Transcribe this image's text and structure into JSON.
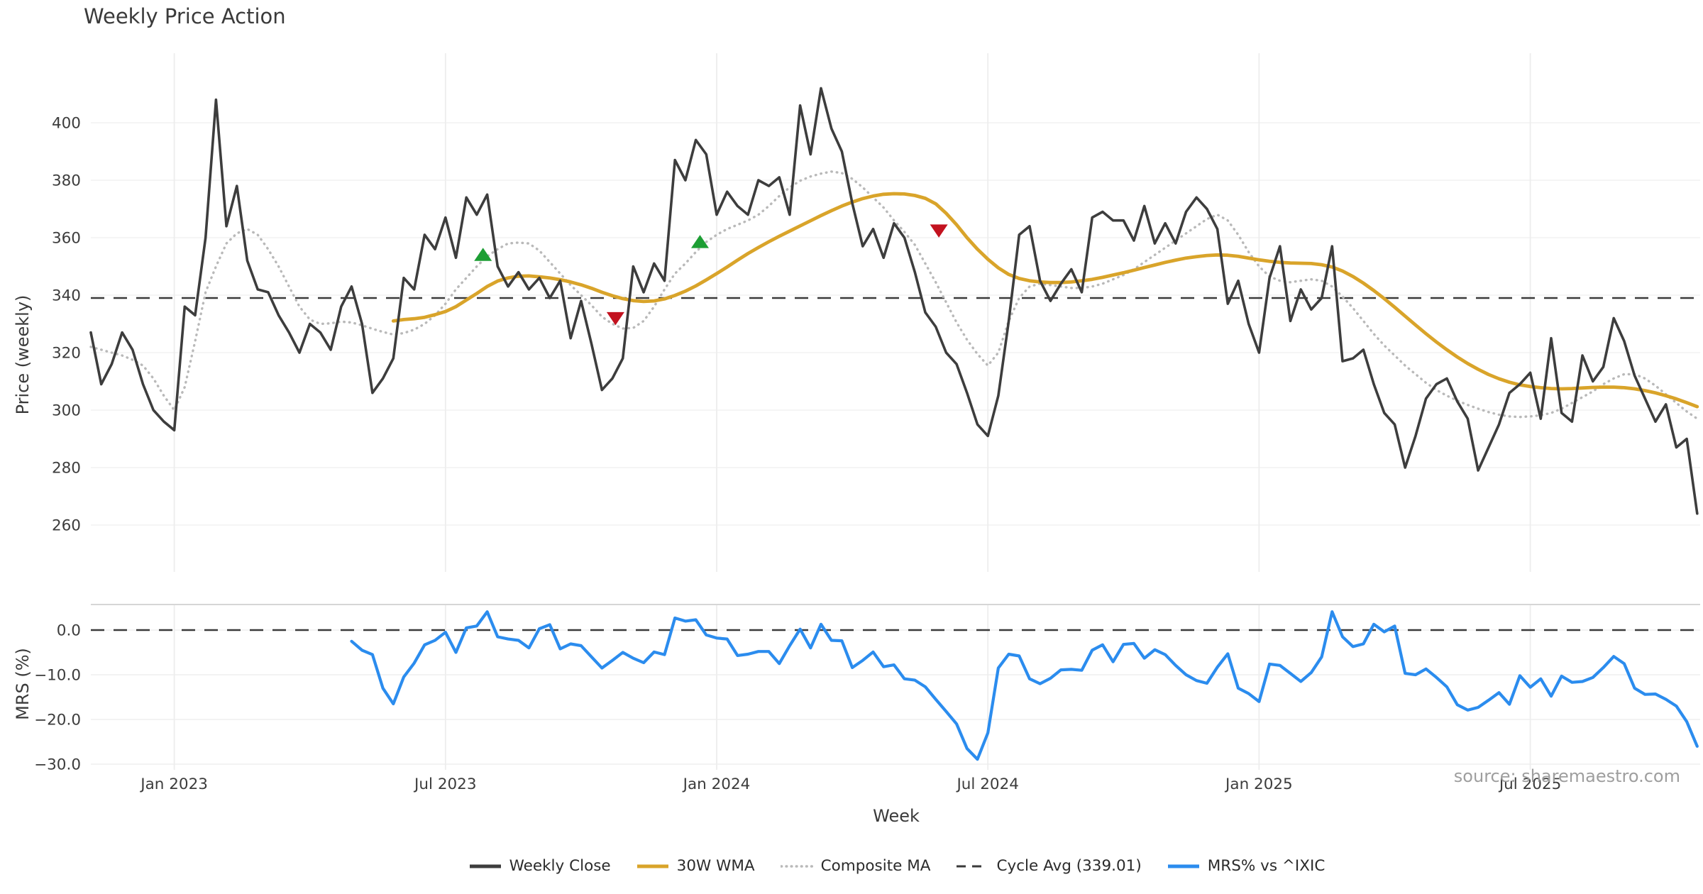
{
  "title": "Weekly Price Action",
  "labels": {
    "xlabel": "Week",
    "price_ylabel": "Price (weekly)",
    "mrs_ylabel": "MRS (%)",
    "source": "source: sharemaestro.com"
  },
  "legend": {
    "items": [
      {
        "label": "Weekly Close",
        "color": "#3d3d3d",
        "style": "solid"
      },
      {
        "label": "30W WMA",
        "color": "#d9a42a",
        "style": "solid"
      },
      {
        "label": "Composite MA",
        "color": "#b9b9b9",
        "style": "dotted"
      },
      {
        "label": "Cycle Avg (339.01)",
        "color": "#3a3a3a",
        "style": "dashed"
      },
      {
        "label": "MRS% vs ^IXIC",
        "color": "#2b8cee",
        "style": "solid"
      }
    ]
  },
  "chart_data": {
    "type": "line",
    "title": "Weekly Price Action",
    "x_axis": {
      "label": "Week",
      "unit": "week_index",
      "ticks": [
        {
          "week": 8,
          "label": "Jan 2023"
        },
        {
          "week": 34,
          "label": "Jul 2023"
        },
        {
          "week": 60,
          "label": "Jan 2024"
        },
        {
          "week": 86,
          "label": "Jul 2024"
        },
        {
          "week": 112,
          "label": "Jan 2025"
        },
        {
          "week": 138,
          "label": "Jul 2025"
        }
      ]
    },
    "price_panel": {
      "ylabel": "Price (weekly)",
      "ylim": [
        254,
        416
      ],
      "yticks": [
        400,
        380,
        360,
        340,
        320,
        300,
        280,
        260
      ],
      "grid": true,
      "cycle_avg": 339.01,
      "weekly_close": {
        "name": "Weekly Close",
        "color": "#3d3d3d",
        "style": "solid",
        "start_week": 0,
        "values": [
          327,
          309,
          316,
          327,
          321,
          309,
          300,
          296,
          293,
          336,
          333,
          360,
          408,
          364,
          378,
          352,
          342,
          341,
          333,
          327,
          320,
          330,
          327,
          321,
          336,
          343,
          330,
          306,
          311,
          318,
          346,
          342,
          361,
          356,
          367,
          353,
          374,
          368,
          375,
          350,
          343,
          348,
          342,
          346,
          339,
          345,
          325,
          338,
          323,
          307,
          311,
          318,
          350,
          341,
          351,
          345,
          387,
          380,
          394,
          389,
          368,
          376,
          371,
          368,
          380,
          378,
          381,
          368,
          406,
          389,
          412,
          398,
          390,
          372,
          357,
          363,
          353,
          365,
          360,
          348,
          334,
          329,
          320,
          316,
          306,
          295,
          291,
          305,
          331,
          361,
          364,
          345,
          338,
          344,
          349,
          341,
          367,
          369,
          366,
          366,
          359,
          371,
          358,
          365,
          358,
          369,
          374,
          370,
          363,
          337,
          345,
          330,
          320,
          346,
          357,
          331,
          342,
          335,
          339,
          357,
          317,
          318,
          321,
          309,
          299,
          295,
          280,
          291,
          304,
          309,
          311,
          303,
          297,
          279,
          287,
          295,
          306,
          309,
          313,
          297,
          325,
          299,
          296,
          319,
          310,
          315,
          332,
          324,
          312,
          304,
          296,
          302,
          287,
          290,
          264
        ]
      },
      "wma_30w": {
        "name": "30W WMA",
        "color": "#d9a42a",
        "style": "solid",
        "start_week": 29,
        "values": [
          331,
          331.5,
          331.8,
          332.3,
          333.2,
          334.3,
          336,
          338.3,
          340.6,
          343,
          344.9,
          346,
          346.6,
          346.7,
          346.4,
          346,
          345.4,
          344.6,
          343.6,
          342.4,
          341,
          339.8,
          338.8,
          338.1,
          337.8,
          338,
          338.7,
          339.9,
          341.4,
          343.2,
          345.3,
          347.5,
          349.8,
          352.2,
          354.5,
          356.6,
          358.6,
          360.5,
          362.3,
          364.1,
          365.9,
          367.7,
          369.4,
          371,
          372.4,
          373.6,
          374.5,
          375.1,
          375.3,
          375.2,
          374.7,
          373.7,
          371.8,
          368.5,
          364.5,
          360,
          356,
          352.5,
          349.5,
          347.2,
          345.8,
          345,
          344.6,
          344.4,
          344.4,
          344.6,
          345,
          345.5,
          346.2,
          347,
          347.8,
          348.7,
          349.6,
          350.5,
          351.4,
          352.2,
          352.9,
          353.4,
          353.8,
          354,
          353.9,
          353.5,
          352.9,
          352.3,
          351.8,
          351.4,
          351.2,
          351.1,
          351,
          350.6,
          349.8,
          348.4,
          346.5,
          344.2,
          341.6,
          338.8,
          335.8,
          332.7,
          329.6,
          326.6,
          323.7,
          321,
          318.5,
          316.2,
          314.2,
          312.4,
          310.9,
          309.7,
          308.8,
          308.2,
          307.8,
          307.5,
          307.4,
          307.5,
          307.7,
          307.9,
          308,
          308,
          307.8,
          307.4,
          306.8,
          306,
          305,
          303.9,
          302.6,
          301.2
        ]
      },
      "composite_ma": {
        "name": "Composite MA",
        "color": "#b9b9b9",
        "style": "dotted",
        "start_week": 0,
        "values": [
          322,
          321,
          320,
          319,
          317.5,
          315.5,
          311,
          305,
          300,
          308,
          324,
          341,
          350,
          358,
          361.5,
          363,
          361,
          356,
          350,
          343,
          336,
          331.5,
          330,
          330.2,
          330.8,
          330.5,
          329.5,
          328.3,
          327.2,
          326.3,
          326.8,
          328,
          330,
          333,
          337,
          342,
          346,
          350,
          353.5,
          356,
          358,
          358.3,
          358,
          355.5,
          351.5,
          347.5,
          343.5,
          340,
          336.5,
          332.5,
          330,
          328.4,
          328.6,
          331,
          336,
          342,
          347.5,
          351,
          355,
          358.5,
          361,
          363,
          364.5,
          366,
          368,
          371,
          374.5,
          377.5,
          379.8,
          381.3,
          382.3,
          383,
          382.5,
          380.5,
          377.5,
          374,
          370.5,
          366,
          362,
          357.5,
          351,
          344.5,
          337.5,
          330.5,
          324.5,
          319.5,
          315.5,
          320,
          331,
          339,
          343,
          344,
          343.5,
          343,
          342.5,
          342.5,
          343,
          344,
          345.5,
          347,
          349,
          351.5,
          354,
          356.5,
          359,
          361.5,
          364,
          366.5,
          368,
          366,
          361,
          355,
          350,
          346.5,
          345,
          344.5,
          345,
          345.5,
          345,
          343,
          339.5,
          335.5,
          331,
          326.5,
          322.5,
          319,
          315.5,
          312.5,
          309.5,
          307,
          305,
          303.3,
          301.8,
          300.5,
          299.3,
          298.4,
          297.8,
          297.6,
          297.8,
          298.2,
          299,
          300.5,
          302.5,
          304.5,
          306.5,
          309,
          311,
          312.5,
          312.5,
          311,
          308.5,
          305.5,
          302.5,
          299.5,
          297
        ]
      },
      "signals": {
        "buy_color": "#1d9e34",
        "sell_color": "#c3121f",
        "buy": [
          {
            "week": 37.6,
            "price": 354
          },
          {
            "week": 58.4,
            "price": 358.5
          }
        ],
        "sell": [
          {
            "week": 50.3,
            "price": 332
          },
          {
            "week": 81.3,
            "price": 362.5
          }
        ]
      }
    },
    "mrs_panel": {
      "ylabel": "MRS (%)",
      "ylim": [
        -31.5,
        5.7
      ],
      "yticks": [
        0,
        -10,
        -20,
        -30
      ],
      "grid": true,
      "zero_line": 0,
      "mrs": {
        "name": "MRS% vs ^IXIC",
        "color": "#2b8cee",
        "style": "solid",
        "start_week": 25,
        "values": [
          -2.5,
          -4.5,
          -5.5,
          -13,
          -16.5,
          -10.5,
          -7.4,
          -3.3,
          -2.3,
          -0.5,
          -5,
          0.5,
          0.9,
          4.1,
          -1.5,
          -2,
          -2.3,
          -4,
          0.3,
          1.2,
          -4.2,
          -3.1,
          -3.5,
          -6,
          -8.5,
          -6.8,
          -5,
          -6.3,
          -7.3,
          -4.9,
          -5.5,
          2.7,
          2,
          2.3,
          -1.1,
          -1.8,
          -2,
          -5.7,
          -5.4,
          -4.8,
          -4.8,
          -7.5,
          -3.5,
          0.2,
          -4,
          1.3,
          -2.3,
          -2.4,
          -8.4,
          -6.8,
          -4.9,
          -8.2,
          -7.8,
          -10.9,
          -11.2,
          -12.7,
          -15.5,
          -18.2,
          -21,
          -26.5,
          -28.9,
          -23,
          -8.5,
          -5.4,
          -5.8,
          -10.9,
          -12,
          -10.8,
          -8.9,
          -8.8,
          -9,
          -4.5,
          -3.3,
          -7.1,
          -3.2,
          -3,
          -6.3,
          -4.4,
          -5.5,
          -7.9,
          -10,
          -11.3,
          -11.9,
          -8.3,
          -5.3,
          -13,
          -14.2,
          -16,
          -7.6,
          -7.9,
          -9.7,
          -11.5,
          -9.5,
          -6,
          4.1,
          -1.5,
          -3.7,
          -3.1,
          1.3,
          -0.4,
          0.9,
          -9.7,
          -10,
          -8.7,
          -10.6,
          -12.7,
          -16.7,
          -17.9,
          -17.3,
          -15.7,
          -14,
          -16.6,
          -10.2,
          -12.8,
          -10.9,
          -14.8,
          -10.3,
          -11.7,
          -11.5,
          -10.6,
          -8.4,
          -5.9,
          -7.5,
          -13,
          -14.4,
          -14.3,
          -15.5,
          -17,
          -20.5,
          -26
        ]
      }
    }
  }
}
